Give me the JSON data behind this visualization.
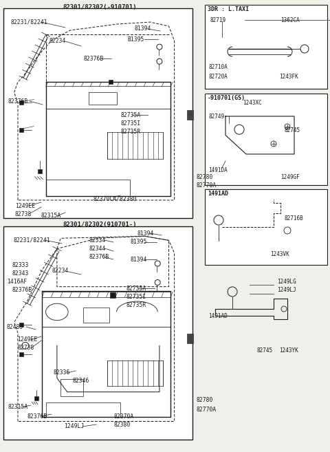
{
  "bg_color": "#f0f0eb",
  "line_color": "#1a1a1a",
  "white": "#ffffff",
  "title_top": "82301/82302(-910701)",
  "title_bottom": "82301/82302(910701-)",
  "side_box1_title": "3DR : L.TAXI",
  "side_box2_title": "-910701(GS)",
  "side_box3_title": "1491AD",
  "fs_label": 5.8,
  "fs_title": 6.5,
  "fs_side": 5.5,
  "lw_main": 0.8,
  "lw_thin": 0.5
}
